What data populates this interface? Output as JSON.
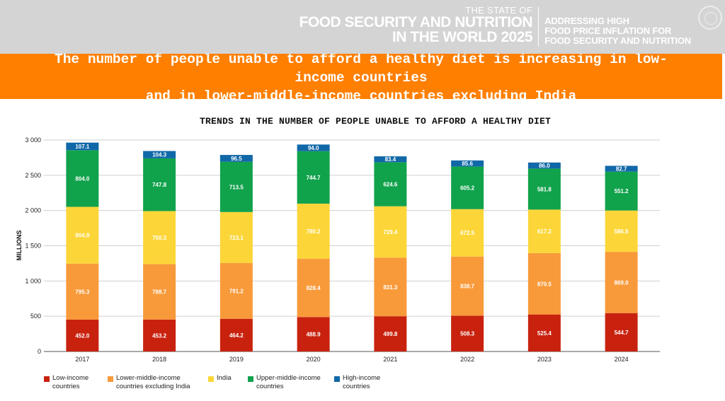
{
  "header": {
    "report_prefix": "THE STATE OF",
    "report_title_line1": "FOOD SECURITY AND NUTRITION",
    "report_title_line2": "IN THE WORLD 2025",
    "report_subtitle": "ADDRESSING HIGH\nFOOD PRICE INFLATION FOR\nFOOD SECURITY AND NUTRITION"
  },
  "banner": {
    "text": "The number of people unable to afford a healthy diet is increasing in low-\nincome countries\nand in lower-middle-income countries excluding India"
  },
  "chart_data": {
    "type": "bar",
    "stacked": true,
    "title": "TRENDS IN THE NUMBER OF PEOPLE UNABLE TO AFFORD A HEALTHY DIET",
    "xlabel": "",
    "ylabel": "MILLIONS",
    "ylim": [
      0,
      3000
    ],
    "yticks": [
      "0",
      "500",
      "1 000",
      "1 500",
      "2 000",
      "2 500",
      "3 000"
    ],
    "grid": true,
    "legend_position": "bottom",
    "categories": [
      "2017",
      "2018",
      "2019",
      "2020",
      "2021",
      "2022",
      "2023",
      "2024"
    ],
    "series": [
      {
        "name": "Low-income\ncountries",
        "color": "#c8220f",
        "values": [
          452.0,
          453.2,
          464.2,
          488.9,
          499.8,
          508.3,
          525.4,
          544.7
        ]
      },
      {
        "name": "Lower-middle-income\ncountries excluding India",
        "color": "#f89a3a",
        "values": [
          795.3,
          788.7,
          791.2,
          828.4,
          831.3,
          838.7,
          870.5,
          869.0
        ]
      },
      {
        "name": "India",
        "color": "#fcd638",
        "values": [
          804.9,
          750.3,
          723.1,
          780.2,
          729.4,
          672.5,
          617.2,
          586.5
        ]
      },
      {
        "name": "Upper-middle-income\ncountries",
        "color": "#11a24c",
        "values": [
          804.0,
          747.8,
          713.5,
          744.7,
          624.6,
          605.2,
          581.8,
          551.2
        ]
      },
      {
        "name": "High-income\ncountries",
        "color": "#1068a8",
        "values": [
          107.1,
          104.3,
          96.5,
          94.0,
          83.4,
          85.6,
          86.0,
          82.7
        ]
      }
    ]
  }
}
